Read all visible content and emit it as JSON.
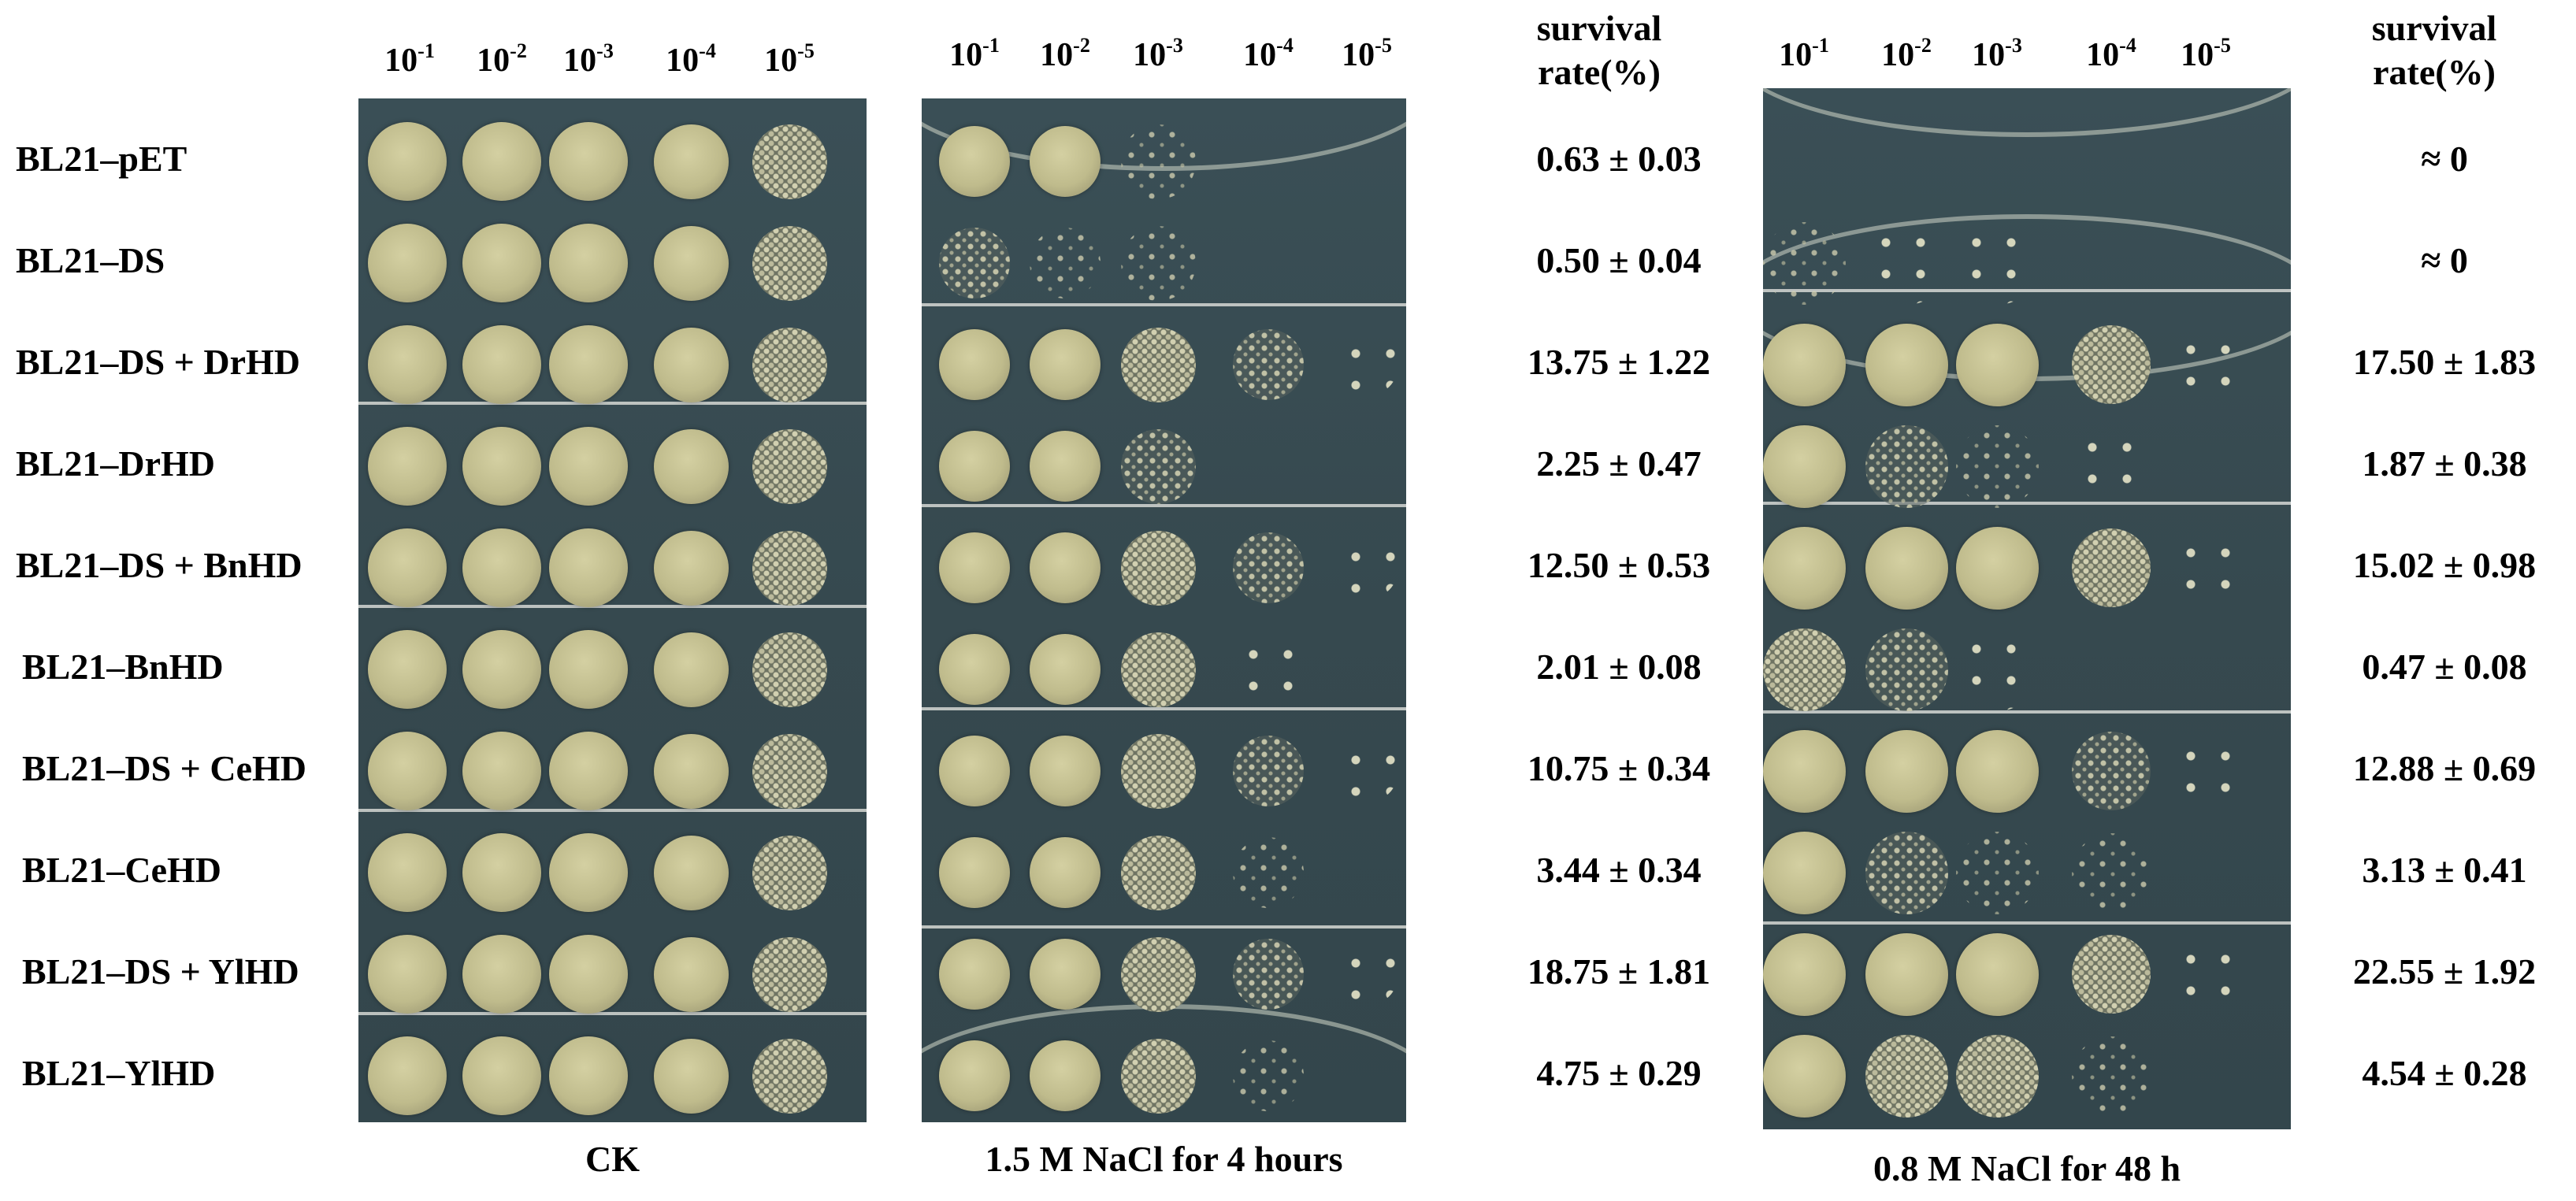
{
  "dilutions": [
    "10",
    "10",
    "10",
    "10",
    "10"
  ],
  "exponents": [
    "-1",
    "-2",
    "-3",
    "-4",
    "-5"
  ],
  "strains": [
    "BL21–pET",
    "BL21–DS",
    "BL21–DS + DrHD",
    "BL21–DrHD",
    "BL21–DS + BnHD",
    "BL21–BnHD",
    "BL21–DS + CeHD",
    "BL21–CeHD",
    "BL21–DS + YlHD",
    "BL21–YlHD"
  ],
  "panels": [
    {
      "caption": "CK"
    },
    {
      "caption": "1.5 M NaCl for 4 hours"
    },
    {
      "caption": "0.8 M NaCl for 48 h"
    }
  ],
  "survival_header": [
    "survival",
    "rate(%)"
  ],
  "survival_nacl_4h": [
    "0.63 ± 0.03",
    "0.50 ± 0.04",
    "13.75 ± 1.22",
    "2.25 ± 0.47",
    "12.50 ± 0.53",
    "2.01 ± 0.08",
    "10.75 ± 0.34",
    "3.44 ± 0.34",
    "18.75 ± 1.81",
    "4.75 ± 0.29"
  ],
  "survival_nacl_48h": [
    "≈ 0",
    "≈ 0",
    "17.50 ± 1.83",
    "1.87 ± 0.38",
    "15.02 ± 0.98",
    "0.47 ± 0.08",
    "12.88 ± 0.69",
    "3.13 ± 0.41",
    "22.55 ± 1.92",
    "4.54 ± 0.28"
  ],
  "growth_levels": {
    "CK": [
      [
        "full",
        "full",
        "full",
        "full",
        "dense"
      ],
      [
        "full",
        "full",
        "full",
        "full",
        "dense"
      ],
      [
        "full",
        "full",
        "full",
        "full",
        "dense"
      ],
      [
        "full",
        "full",
        "full",
        "full",
        "dense"
      ],
      [
        "full",
        "full",
        "full",
        "full",
        "dense"
      ],
      [
        "full",
        "full",
        "full",
        "full",
        "dense"
      ],
      [
        "full",
        "full",
        "full",
        "full",
        "dense"
      ],
      [
        "full",
        "full",
        "full",
        "full",
        "dense"
      ],
      [
        "full",
        "full",
        "full",
        "full",
        "dense"
      ],
      [
        "full",
        "full",
        "full",
        "full",
        "dense"
      ]
    ],
    "NaCl_4h": [
      [
        "full",
        "full",
        "sparse",
        "none",
        "none"
      ],
      [
        "medium",
        "sparse",
        "sparse",
        "none",
        "none"
      ],
      [
        "full",
        "full",
        "dense",
        "medium",
        "few"
      ],
      [
        "full",
        "full",
        "medium",
        "none",
        "none"
      ],
      [
        "full",
        "full",
        "dense",
        "medium",
        "few"
      ],
      [
        "full",
        "full",
        "dense",
        "few",
        "none"
      ],
      [
        "full",
        "full",
        "dense",
        "medium",
        "few"
      ],
      [
        "full",
        "full",
        "dense",
        "sparse",
        "none"
      ],
      [
        "full",
        "full",
        "dense",
        "medium",
        "few"
      ],
      [
        "full",
        "full",
        "dense",
        "sparse",
        "none"
      ]
    ],
    "NaCl_48h": [
      [
        "none",
        "none",
        "none",
        "none",
        "none"
      ],
      [
        "sparse",
        "few",
        "few",
        "none",
        "none"
      ],
      [
        "full",
        "full",
        "full",
        "dense",
        "few"
      ],
      [
        "full",
        "medium",
        "sparse",
        "few",
        "none"
      ],
      [
        "full",
        "full",
        "full",
        "dense",
        "few"
      ],
      [
        "dense",
        "medium",
        "few",
        "none",
        "none"
      ],
      [
        "full",
        "full",
        "full",
        "medium",
        "few"
      ],
      [
        "full",
        "medium",
        "sparse",
        "sparse",
        "none"
      ],
      [
        "full",
        "full",
        "full",
        "dense",
        "few"
      ],
      [
        "full",
        "dense",
        "dense",
        "sparse",
        "none"
      ]
    ]
  }
}
